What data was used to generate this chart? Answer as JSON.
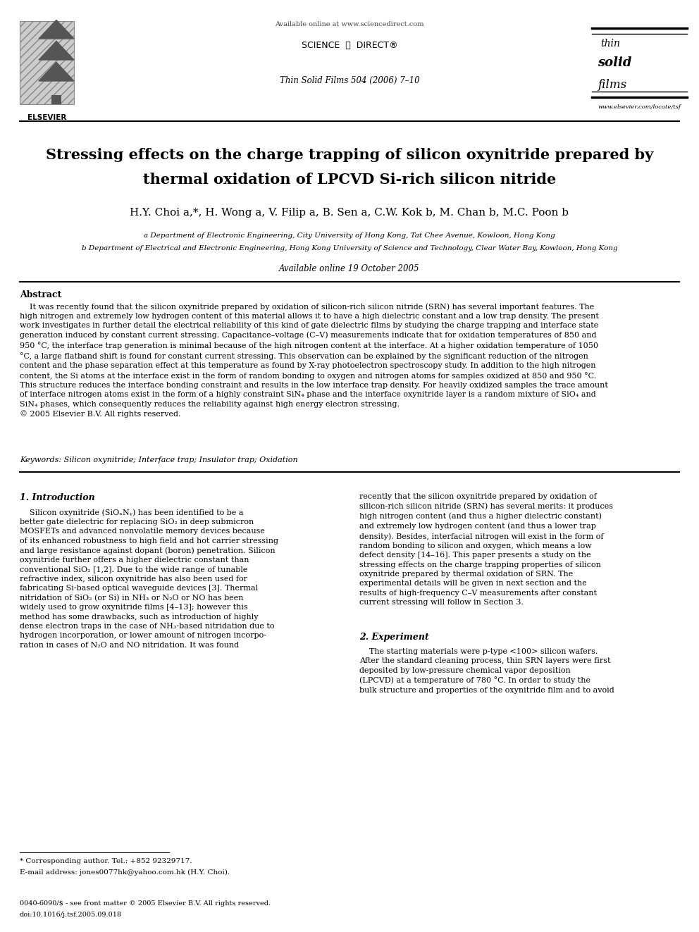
{
  "page_width": 9.92,
  "page_height": 13.23,
  "bg_color": "#ffffff",
  "header_available_text": "Available online at www.sciencedirect.com",
  "header_journal_text": "Thin Solid Films 504 (2006) 7–10",
  "header_science_direct": "SCIENCE  ⓓ  DIRECT®",
  "journal_url": "www.elsevier.com/locate/tsf",
  "elsevier_label": "ELSEVIER",
  "paper_title_line1": "Stressing effects on the charge trapping of silicon oxynitride prepared by",
  "paper_title_line2": "thermal oxidation of LPCVD Si-rich silicon nitride",
  "authors": "H.Y. Choi a,*, H. Wong a, V. Filip a, B. Sen a, C.W. Kok b, M. Chan b, M.C. Poon b",
  "affil_a": "a Department of Electronic Engineering, City University of Hong Kong, Tat Chee Avenue, Kowloon, Hong Kong",
  "affil_b": "b Department of Electrical and Electronic Engineering, Hong Kong University of Science and Technology, Clear Water Bay, Kowloon, Hong Kong",
  "available_online": "Available online 19 October 2005",
  "abstract_heading": "Abstract",
  "keywords_text": "Keywords: Silicon oxynitride; Interface trap; Insulator trap; Oxidation",
  "section1_heading": "1. Introduction",
  "section2_heading": "2. Experiment",
  "footnote_star": "* Corresponding author. Tel.: +852 92329717.",
  "footnote_email": "E-mail address: jones0077hk@yahoo.com.hk (H.Y. Choi).",
  "footer_issn": "0040-6090/$ - see front matter © 2005 Elsevier B.V. All rights reserved.",
  "footer_doi": "doi:10.1016/j.tsf.2005.09.018"
}
